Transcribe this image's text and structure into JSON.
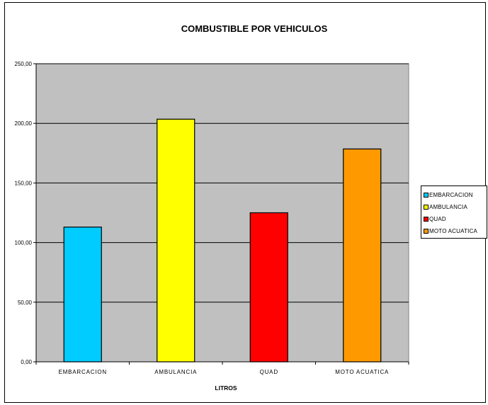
{
  "chart_data": {
    "type": "bar",
    "title": "COMBUSTIBLE POR VEHICULOS",
    "xlabel": "LITROS",
    "ylabel": "",
    "ylim": [
      0,
      250
    ],
    "yticks": [
      "0,00",
      "50,00",
      "100,00",
      "150,00",
      "200,00",
      "250,00"
    ],
    "ytick_values": [
      0,
      50,
      100,
      150,
      200,
      250
    ],
    "categories": [
      "EMBARCACION",
      "AMBULANCIA",
      "QUAD",
      "MOTO ACUATICA"
    ],
    "values": [
      113,
      203.5,
      125,
      178.5
    ],
    "colors": [
      "#00ccff",
      "#ffff00",
      "#ff0000",
      "#ff9900"
    ],
    "plot_background": "#c0c0c0",
    "grid": true,
    "legend_position": "right",
    "legend": [
      "EMBARCACION",
      "AMBULANCIA",
      "QUAD",
      "MOTO ACUATICA"
    ]
  }
}
